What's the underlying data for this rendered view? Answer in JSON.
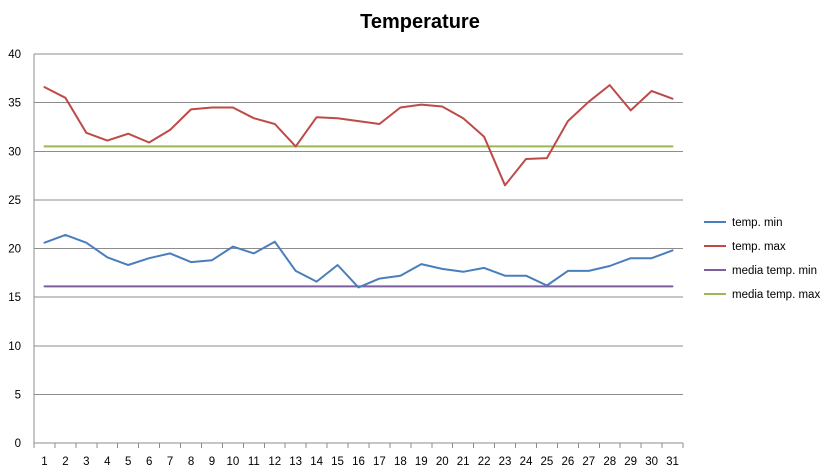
{
  "chart_data": {
    "type": "line",
    "title": "Temperature",
    "xlabel": "",
    "ylabel": "",
    "categories": [
      1,
      2,
      3,
      4,
      5,
      6,
      7,
      8,
      9,
      10,
      11,
      12,
      13,
      14,
      15,
      16,
      17,
      18,
      19,
      20,
      21,
      22,
      23,
      24,
      25,
      26,
      27,
      28,
      29,
      30,
      31
    ],
    "ylim": [
      0,
      40
    ],
    "yticks": [
      0,
      5,
      10,
      15,
      20,
      25,
      30,
      35,
      40
    ],
    "grid": "horizontal",
    "legend_position": "right",
    "series": [
      {
        "name": "temp. min",
        "color": "#4A7EBB",
        "values": [
          20.6,
          21.4,
          20.6,
          19.1,
          18.3,
          19.0,
          19.5,
          18.6,
          18.8,
          20.2,
          19.5,
          20.7,
          17.7,
          16.6,
          18.3,
          16.0,
          16.9,
          17.2,
          18.4,
          17.9,
          17.6,
          18.0,
          17.2,
          17.2,
          16.2,
          17.7,
          17.7,
          18.2,
          19.0,
          19.0,
          19.8
        ]
      },
      {
        "name": "temp. max",
        "color": "#BE4B48",
        "values": [
          36.6,
          35.5,
          31.9,
          31.1,
          31.8,
          30.9,
          32.2,
          34.3,
          34.5,
          34.5,
          33.4,
          32.8,
          30.5,
          33.5,
          33.4,
          33.1,
          32.8,
          34.5,
          34.8,
          34.6,
          33.4,
          31.5,
          26.5,
          29.2,
          29.3,
          33.1,
          35.1,
          36.8,
          34.2,
          36.2,
          35.4
        ]
      },
      {
        "name": "media temp. min",
        "color": "#7D5FA0",
        "values": [
          16.1,
          16.1,
          16.1,
          16.1,
          16.1,
          16.1,
          16.1,
          16.1,
          16.1,
          16.1,
          16.1,
          16.1,
          16.1,
          16.1,
          16.1,
          16.1,
          16.1,
          16.1,
          16.1,
          16.1,
          16.1,
          16.1,
          16.1,
          16.1,
          16.1,
          16.1,
          16.1,
          16.1,
          16.1,
          16.1,
          16.1
        ]
      },
      {
        "name": "media temp. max",
        "color": "#98B954",
        "values": [
          30.5,
          30.5,
          30.5,
          30.5,
          30.5,
          30.5,
          30.5,
          30.5,
          30.5,
          30.5,
          30.5,
          30.5,
          30.5,
          30.5,
          30.5,
          30.5,
          30.5,
          30.5,
          30.5,
          30.5,
          30.5,
          30.5,
          30.5,
          30.5,
          30.5,
          30.5,
          30.5,
          30.5,
          30.5,
          30.5,
          30.5
        ]
      }
    ]
  }
}
